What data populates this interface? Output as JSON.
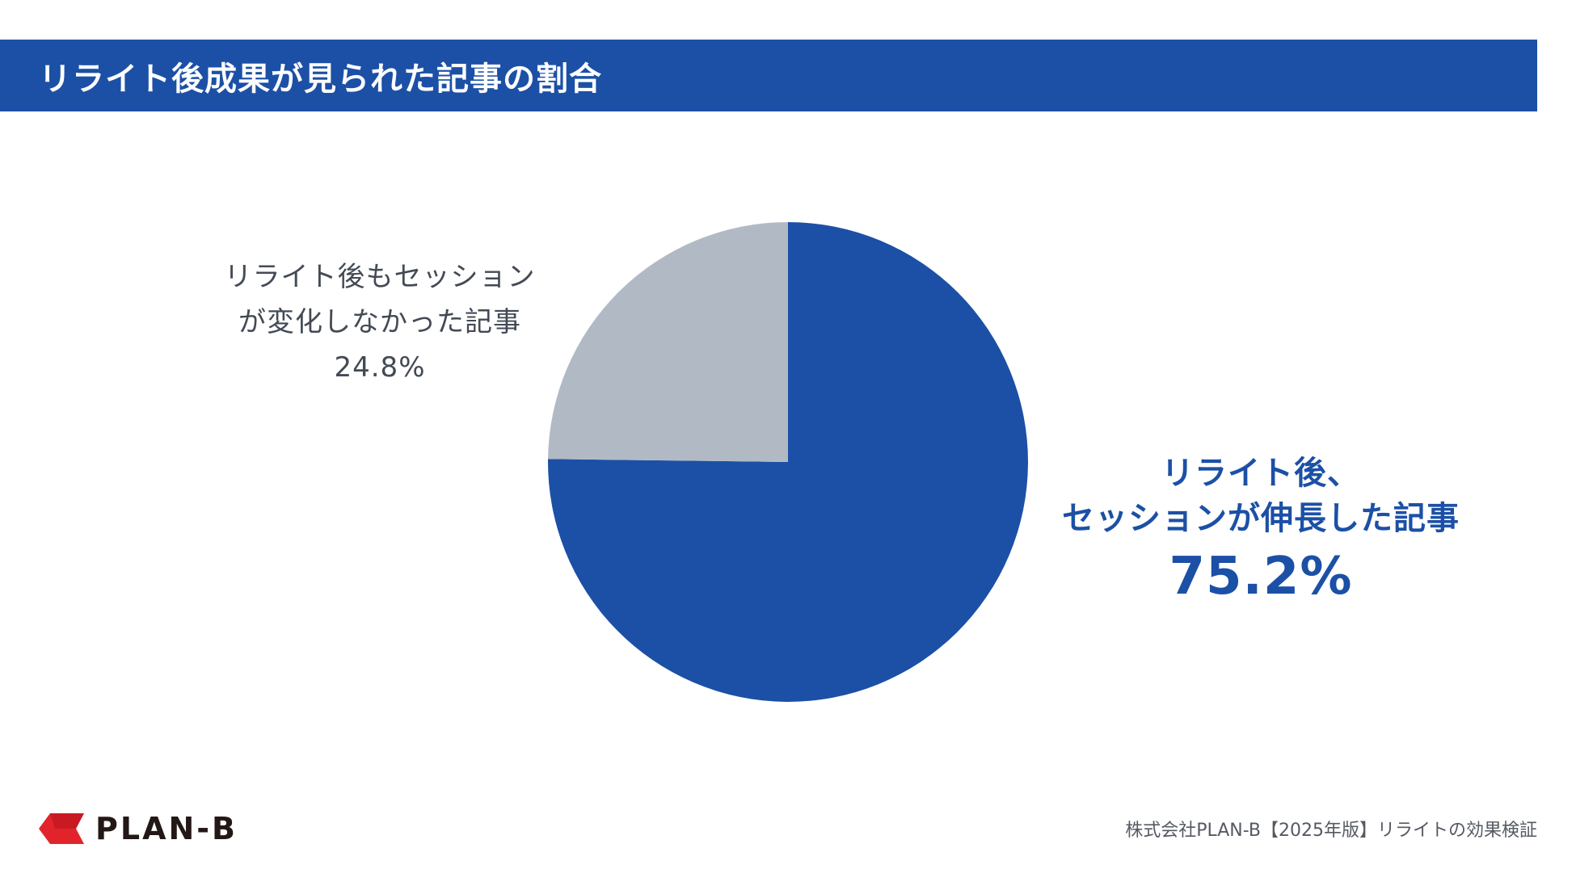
{
  "header": {
    "title": "リライト後成果が見られた記事の割合"
  },
  "chart_data": {
    "type": "pie",
    "title": "リライト後成果が見られた記事の割合",
    "slices": [
      {
        "name_line1": "リライト後、",
        "name_line2": "セッションが伸長した記事",
        "value": 75.2,
        "label": "75.2%",
        "color": "#1c50a6"
      },
      {
        "name_line1": "リライト後もセッション",
        "name_line2": "が変化しなかった記事",
        "value": 24.8,
        "label": "24.8%",
        "color": "#b1bac4"
      }
    ],
    "start": "12 o'clock",
    "direction": "clockwise"
  },
  "footer": {
    "logo_text": "PLAN-B",
    "logo_color": "#e1242b",
    "note": "株式会社PLAN-B【2025年版】リライトの効果検証"
  }
}
